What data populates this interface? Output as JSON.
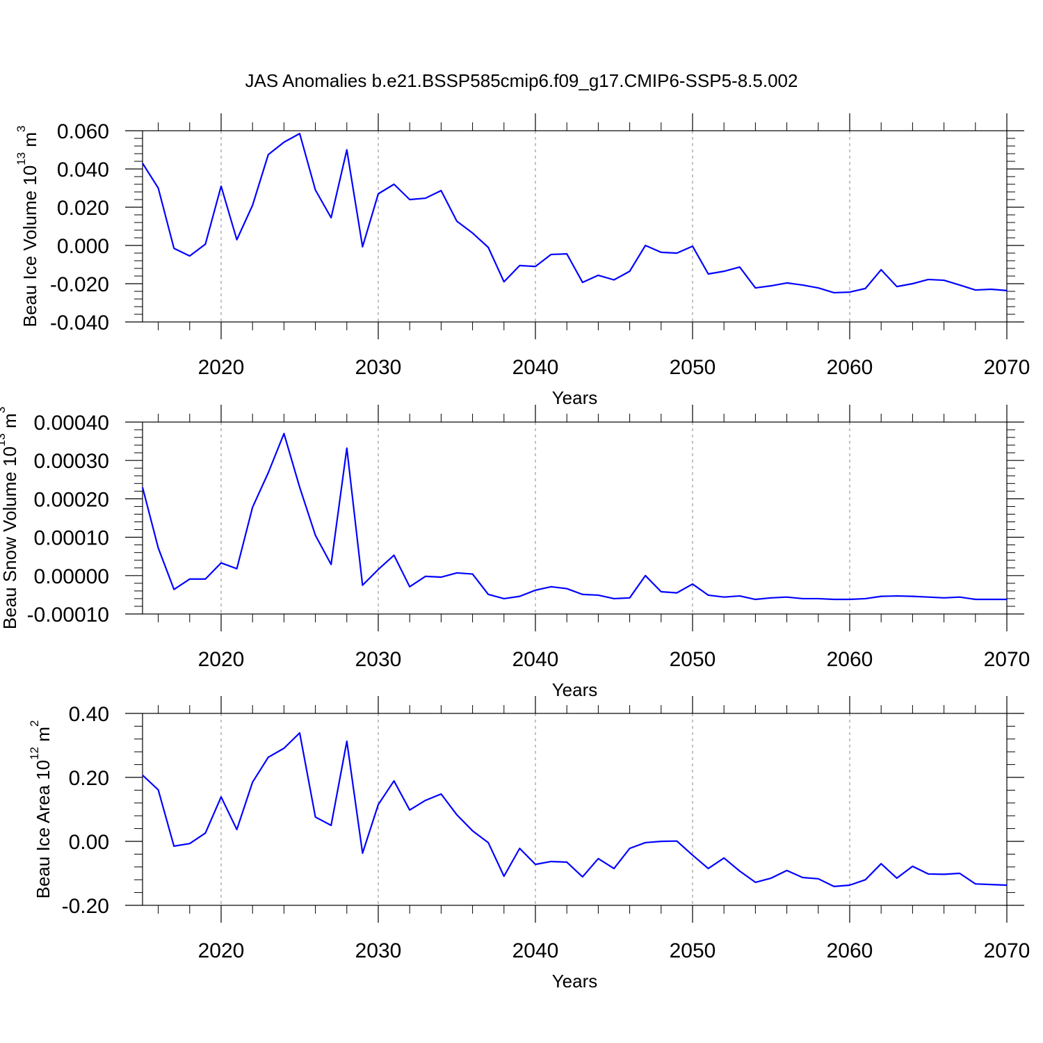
{
  "title": "JAS Anomalies b.e21.BSSP585cmip6.f09_g17.CMIP6-SSP5-8.5.002",
  "chart_data": [
    {
      "type": "line",
      "color": "#0000ff",
      "grid": "x",
      "ylabel": {
        "text": "Beau Ice Volume 10",
        "exp": "13",
        "unit": " m",
        "unit_exp": "3"
      },
      "xlabel": "Years",
      "x": [
        2015,
        2016,
        2017,
        2018,
        2019,
        2020,
        2021,
        2022,
        2023,
        2024,
        2025,
        2026,
        2027,
        2028,
        2029,
        2030,
        2031,
        2032,
        2033,
        2034,
        2035,
        2036,
        2037,
        2038,
        2039,
        2040,
        2041,
        2042,
        2043,
        2044,
        2045,
        2046,
        2047,
        2048,
        2049,
        2050,
        2051,
        2052,
        2053,
        2054,
        2055,
        2056,
        2057,
        2058,
        2059,
        2060,
        2061,
        2062,
        2063,
        2064,
        2065,
        2066,
        2067,
        2068,
        2069,
        2070
      ],
      "values": [
        0.043,
        0.03,
        -0.0015,
        -0.0055,
        0.0007,
        0.031,
        0.003,
        0.021,
        0.0475,
        0.054,
        0.0585,
        0.029,
        0.0145,
        0.05,
        -0.0007,
        0.027,
        0.032,
        0.024,
        0.0247,
        0.0287,
        0.0127,
        0.0065,
        -0.001,
        -0.019,
        -0.0105,
        -0.011,
        -0.0047,
        -0.0044,
        -0.0193,
        -0.0156,
        -0.018,
        -0.0135,
        0.0,
        -0.0036,
        -0.004,
        -0.0004,
        -0.0149,
        -0.0135,
        -0.0113,
        -0.0222,
        -0.0211,
        -0.0196,
        -0.0207,
        -0.0222,
        -0.0247,
        -0.0244,
        -0.0225,
        -0.0127,
        -0.0215,
        -0.02,
        -0.0178,
        -0.0182,
        -0.0207,
        -0.0233,
        -0.0229,
        -0.0236
      ],
      "xlim": [
        2015,
        2070
      ],
      "xticks": [
        2020,
        2030,
        2040,
        2050,
        2060,
        2070
      ],
      "ylim": [
        -0.04,
        0.06
      ],
      "yticks": [
        {
          "value": -0.04,
          "label": "-0.040"
        },
        {
          "value": -0.02,
          "label": "-0.020"
        },
        {
          "value": 0,
          "label": "0.000"
        },
        {
          "value": 0.02,
          "label": "0.020"
        },
        {
          "value": 0.04,
          "label": "0.040"
        },
        {
          "value": 0.06,
          "label": "0.060"
        }
      ]
    },
    {
      "type": "line",
      "color": "#0000ff",
      "grid": "x",
      "ylabel": {
        "text": "Beau Snow Volume 10",
        "exp": "13",
        "unit": " m",
        "unit_exp": "3"
      },
      "xlabel": "Years",
      "x": [
        2015,
        2016,
        2017,
        2018,
        2019,
        2020,
        2021,
        2022,
        2023,
        2024,
        2025,
        2026,
        2027,
        2028,
        2029,
        2030,
        2031,
        2032,
        2033,
        2034,
        2035,
        2036,
        2037,
        2038,
        2039,
        2040,
        2041,
        2042,
        2043,
        2044,
        2045,
        2046,
        2047,
        2048,
        2049,
        2050,
        2051,
        2052,
        2053,
        2054,
        2055,
        2056,
        2057,
        2058,
        2059,
        2060,
        2061,
        2062,
        2063,
        2064,
        2065,
        2066,
        2067,
        2068,
        2069,
        2070
      ],
      "values": [
        0.00023,
        7.2e-05,
        -3.6e-05,
        -9e-06,
        -9e-06,
        3.3e-05,
        1.8e-05,
        0.000178,
        0.000268,
        0.00037,
        0.00023,
        0.000105,
        2.9e-05,
        0.000332,
        -2.5e-05,
        1.6e-05,
        5.3e-05,
        -2.9e-05,
        -2e-06,
        -4e-06,
        7e-06,
        4e-06,
        -4.9e-05,
        -6e-05,
        -5.4e-05,
        -3.8e-05,
        -2.9e-05,
        -3.4e-05,
        -4.9e-05,
        -5.1e-05,
        -6e-05,
        -5.8e-05,
        0.0,
        -4.2e-05,
        -4.5e-05,
        -2.2e-05,
        -5.1e-05,
        -5.6e-05,
        -5.3e-05,
        -6.2e-05,
        -5.8e-05,
        -5.6e-05,
        -6e-05,
        -6e-05,
        -6.2e-05,
        -6.2e-05,
        -6e-05,
        -5.4e-05,
        -5.3e-05,
        -5.4e-05,
        -5.6e-05,
        -5.8e-05,
        -5.6e-05,
        -6.2e-05,
        -6.2e-05,
        -6.2e-05
      ],
      "xlim": [
        2015,
        2070
      ],
      "xticks": [
        2020,
        2030,
        2040,
        2050,
        2060,
        2070
      ],
      "ylim": [
        -0.0001,
        0.0004
      ],
      "yticks": [
        {
          "value": -0.0001,
          "label": "-0.00010"
        },
        {
          "value": 0,
          "label": "0.00000"
        },
        {
          "value": 0.0001,
          "label": "0.00010"
        },
        {
          "value": 0.0002,
          "label": "0.00020"
        },
        {
          "value": 0.0003,
          "label": "0.00030"
        },
        {
          "value": 0.0004,
          "label": "0.00040"
        }
      ]
    },
    {
      "type": "line",
      "color": "#0000ff",
      "grid": "x",
      "ylabel": {
        "text": "Beau Ice Area 10",
        "exp": "12",
        "unit": " m",
        "unit_exp": "2"
      },
      "xlabel": "Years",
      "x": [
        2015,
        2016,
        2017,
        2018,
        2019,
        2020,
        2021,
        2022,
        2023,
        2024,
        2025,
        2026,
        2027,
        2028,
        2029,
        2030,
        2031,
        2032,
        2033,
        2034,
        2035,
        2036,
        2037,
        2038,
        2039,
        2040,
        2041,
        2042,
        2043,
        2044,
        2045,
        2046,
        2047,
        2048,
        2049,
        2050,
        2051,
        2052,
        2053,
        2054,
        2055,
        2056,
        2057,
        2058,
        2059,
        2060,
        2061,
        2062,
        2063,
        2064,
        2065,
        2066,
        2067,
        2068,
        2069,
        2070
      ],
      "values": [
        0.207,
        0.161,
        -0.015,
        -0.007,
        0.026,
        0.139,
        0.037,
        0.185,
        0.263,
        0.291,
        0.339,
        0.076,
        0.05,
        0.313,
        -0.037,
        0.115,
        0.189,
        0.098,
        0.128,
        0.148,
        0.083,
        0.033,
        -0.004,
        -0.109,
        -0.022,
        -0.072,
        -0.063,
        -0.065,
        -0.111,
        -0.054,
        -0.085,
        -0.022,
        -0.004,
        0.0,
        0.001,
        -0.043,
        -0.085,
        -0.052,
        -0.093,
        -0.128,
        -0.115,
        -0.091,
        -0.113,
        -0.117,
        -0.141,
        -0.137,
        -0.12,
        -0.07,
        -0.115,
        -0.078,
        -0.102,
        -0.103,
        -0.1,
        -0.133,
        -0.135,
        -0.137
      ],
      "xlim": [
        2015,
        2070
      ],
      "xticks": [
        2020,
        2030,
        2040,
        2050,
        2060,
        2070
      ],
      "ylim": [
        -0.2,
        0.4
      ],
      "yticks": [
        {
          "value": -0.2,
          "label": "-0.20"
        },
        {
          "value": 0,
          "label": "0.00"
        },
        {
          "value": 0.2,
          "label": "0.20"
        },
        {
          "value": 0.4,
          "label": "0.40"
        }
      ]
    }
  ]
}
